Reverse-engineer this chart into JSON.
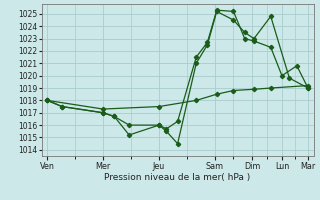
{
  "background_color": "#cce8e8",
  "grid_color": "#aacccc",
  "line_color": "#1a5c1a",
  "x_labels": [
    "Ven",
    "Mer",
    "Jeu",
    "Sam",
    "Dim",
    "Lun",
    "Mar"
  ],
  "xlabel": "Pression niveau de la mer( hPa )",
  "ylim": [
    1013.5,
    1025.8
  ],
  "yticks": [
    1014,
    1015,
    1016,
    1017,
    1018,
    1019,
    1020,
    1021,
    1022,
    1023,
    1024,
    1025
  ],
  "xlim": [
    -0.15,
    7.15
  ],
  "x_tick_positions": [
    0,
    1.5,
    3.0,
    4.5,
    5.5,
    6.3,
    7.0
  ],
  "line1_x": [
    0.0,
    0.4,
    1.5,
    1.8,
    2.2,
    3.0,
    3.2,
    3.5,
    4.0,
    4.3,
    4.55,
    5.0,
    5.3,
    5.55,
    6.0,
    6.3,
    6.7,
    7.0
  ],
  "line1_y": [
    1018.0,
    1017.5,
    1017.0,
    1016.7,
    1016.0,
    1016.0,
    1015.7,
    1016.3,
    1021.5,
    1022.7,
    1025.3,
    1025.2,
    1023.0,
    1022.8,
    1022.3,
    1020.0,
    1020.8,
    1019.0
  ],
  "line2_x": [
    0.0,
    0.4,
    1.5,
    1.8,
    2.2,
    3.0,
    3.2,
    3.5,
    4.0,
    4.3,
    4.55,
    5.0,
    5.3,
    5.55,
    6.0,
    6.5,
    7.0
  ],
  "line2_y": [
    1018.0,
    1017.5,
    1017.0,
    1016.7,
    1015.2,
    1016.0,
    1015.5,
    1014.5,
    1021.0,
    1022.5,
    1025.2,
    1024.5,
    1023.5,
    1023.0,
    1024.8,
    1019.8,
    1019.0
  ],
  "line3_x": [
    0.0,
    1.5,
    3.0,
    4.0,
    4.55,
    5.0,
    5.55,
    6.0,
    7.0
  ],
  "line3_y": [
    1018.0,
    1017.3,
    1017.5,
    1018.0,
    1018.5,
    1018.8,
    1018.9,
    1019.0,
    1019.2
  ]
}
